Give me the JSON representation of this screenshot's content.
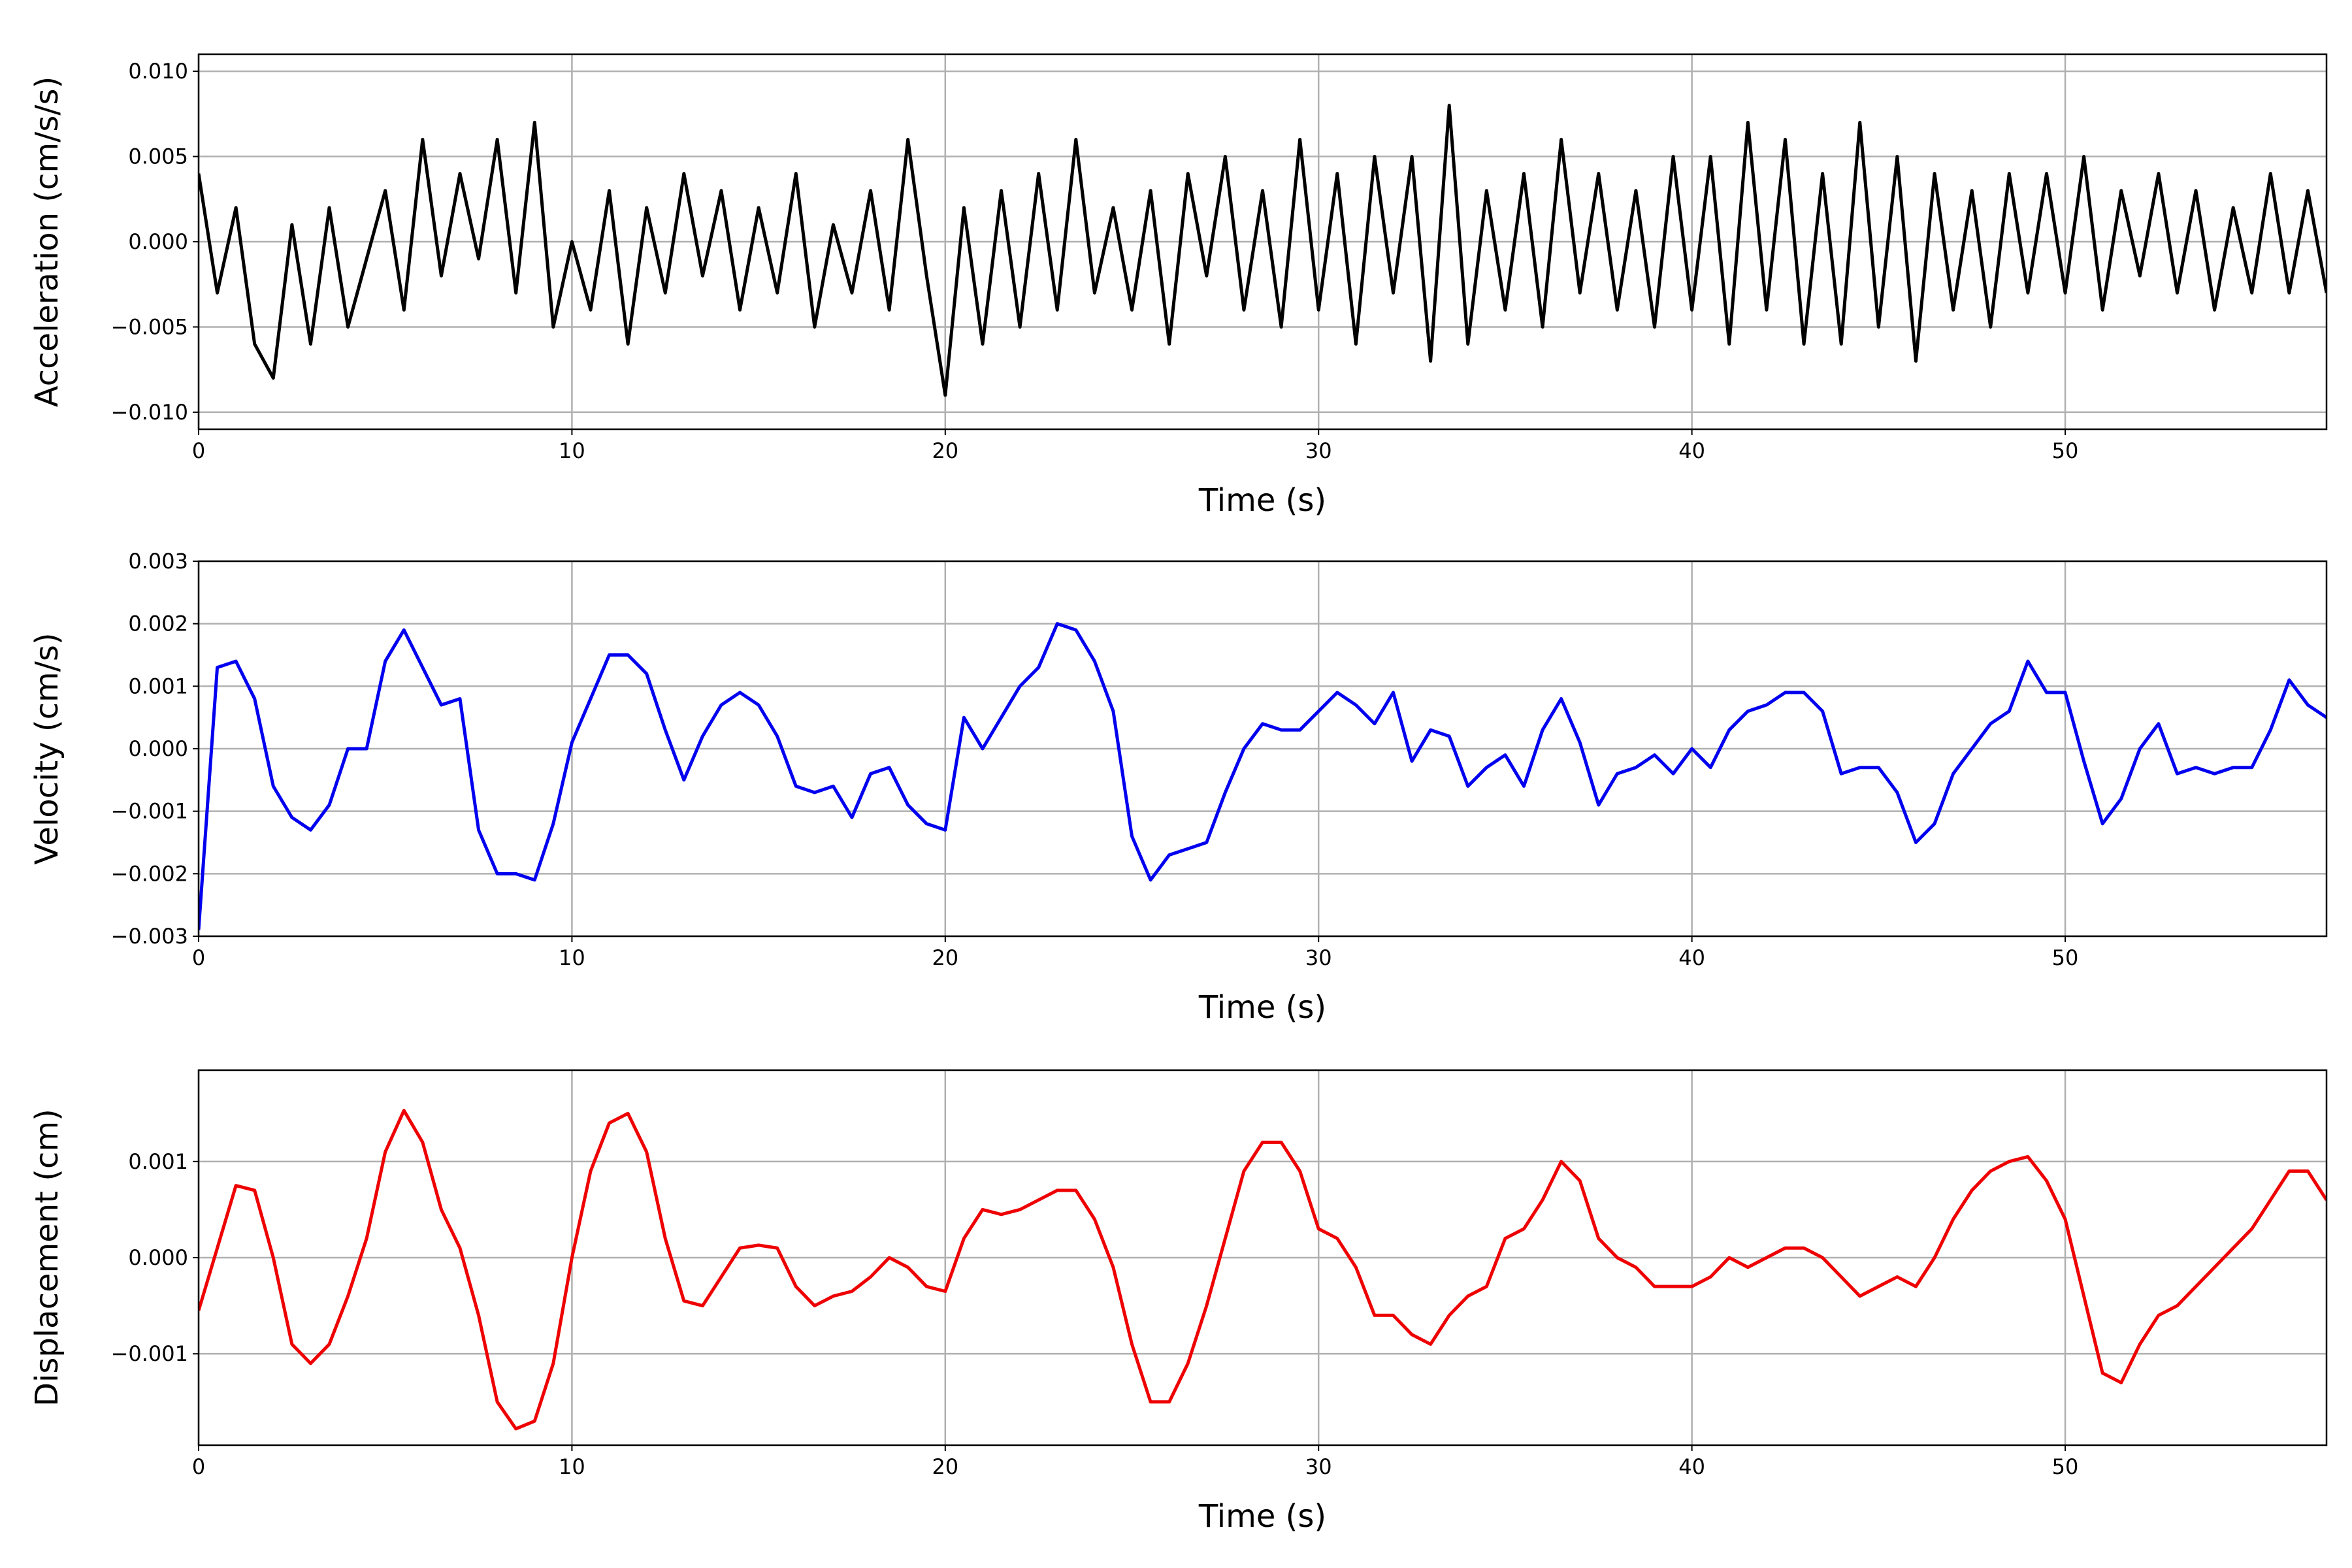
{
  "chart_data": [
    {
      "type": "line",
      "xlabel": "Time (s)",
      "ylabel": "Acceleration (cm/s/s)",
      "color": "#000000",
      "grid": true,
      "xlim": [
        0,
        57
      ],
      "xticks": [
        0,
        10,
        20,
        30,
        40,
        50
      ],
      "ylim": [
        -0.011,
        0.011
      ],
      "yticks": [
        {
          "value": -0.01,
          "label": "−0.010"
        },
        {
          "value": -0.005,
          "label": "−0.005"
        },
        {
          "value": 0,
          "label": "0.000"
        },
        {
          "value": 0.005,
          "label": "0.005"
        },
        {
          "value": 0.01,
          "label": "0.010"
        }
      ],
      "x": [
        0,
        0.5,
        1,
        1.5,
        2,
        2.5,
        3,
        3.5,
        4,
        4.5,
        5,
        5.5,
        6,
        6.5,
        7,
        7.5,
        8,
        8.5,
        9,
        9.5,
        10,
        10.5,
        11,
        11.5,
        12,
        12.5,
        13,
        13.5,
        14,
        14.5,
        15,
        15.5,
        16,
        16.5,
        17,
        17.5,
        18,
        18.5,
        19,
        19.5,
        20,
        20.5,
        21,
        21.5,
        22,
        22.5,
        23,
        23.5,
        24,
        24.5,
        25,
        25.5,
        26,
        26.5,
        27,
        27.5,
        28,
        28.5,
        29,
        29.5,
        30,
        30.5,
        31,
        31.5,
        32,
        32.5,
        33,
        33.5,
        34,
        34.5,
        35,
        35.5,
        36,
        36.5,
        37,
        37.5,
        38,
        38.5,
        39,
        39.5,
        40,
        40.5,
        41,
        41.5,
        42,
        42.5,
        43,
        43.5,
        44,
        44.5,
        45,
        45.5,
        46,
        46.5,
        47,
        47.5,
        48,
        48.5,
        49,
        49.5,
        50,
        50.5,
        51,
        51.5,
        52,
        52.5,
        53,
        53.5,
        54,
        54.5,
        55,
        55.5,
        56,
        56.5,
        57
      ],
      "values": [
        0.004,
        -0.003,
        0.002,
        -0.006,
        -0.008,
        0.001,
        -0.006,
        0.002,
        -0.005,
        -0.001,
        0.003,
        -0.004,
        0.006,
        -0.002,
        0.004,
        -0.001,
        0.006,
        -0.003,
        0.007,
        -0.005,
        0.0,
        -0.004,
        0.003,
        -0.006,
        0.002,
        -0.003,
        0.004,
        -0.002,
        0.003,
        -0.004,
        0.002,
        -0.003,
        0.004,
        -0.005,
        0.001,
        -0.003,
        0.003,
        -0.004,
        0.006,
        -0.002,
        -0.009,
        0.002,
        -0.006,
        0.003,
        -0.005,
        0.004,
        -0.004,
        0.006,
        -0.003,
        0.002,
        -0.004,
        0.003,
        -0.006,
        0.004,
        -0.002,
        0.005,
        -0.004,
        0.003,
        -0.005,
        0.006,
        -0.004,
        0.004,
        -0.006,
        0.005,
        -0.003,
        0.005,
        -0.007,
        0.008,
        -0.006,
        0.003,
        -0.004,
        0.004,
        -0.005,
        0.006,
        -0.003,
        0.004,
        -0.004,
        0.003,
        -0.005,
        0.005,
        -0.004,
        0.005,
        -0.006,
        0.007,
        -0.004,
        0.006,
        -0.006,
        0.004,
        -0.006,
        0.007,
        -0.005,
        0.005,
        -0.007,
        0.004,
        -0.004,
        0.003,
        -0.005,
        0.004,
        -0.003,
        0.004,
        -0.003,
        0.005,
        -0.004,
        0.003,
        -0.002,
        0.004,
        -0.003,
        0.003,
        -0.004,
        0.002,
        -0.003,
        0.004,
        -0.003,
        0.003,
        -0.003
      ]
    },
    {
      "type": "line",
      "xlabel": "Time (s)",
      "ylabel": "Velocity (cm/s)",
      "color": "#0000ee",
      "grid": true,
      "xlim": [
        0,
        57
      ],
      "xticks": [
        0,
        10,
        20,
        30,
        40,
        50
      ],
      "ylim": [
        -0.003,
        0.003
      ],
      "yticks": [
        {
          "value": -0.003,
          "label": "−0.003"
        },
        {
          "value": -0.002,
          "label": "−0.002"
        },
        {
          "value": -0.001,
          "label": "−0.001"
        },
        {
          "value": 0,
          "label": "0.000"
        },
        {
          "value": 0.001,
          "label": "0.001"
        },
        {
          "value": 0.002,
          "label": "0.002"
        },
        {
          "value": 0.003,
          "label": "0.003"
        }
      ],
      "x": [
        0,
        0.5,
        1,
        1.5,
        2,
        2.5,
        3,
        3.5,
        4,
        4.5,
        5,
        5.5,
        6,
        6.5,
        7,
        7.5,
        8,
        8.5,
        9,
        9.5,
        10,
        10.5,
        11,
        11.5,
        12,
        12.5,
        13,
        13.5,
        14,
        14.5,
        15,
        15.5,
        16,
        16.5,
        17,
        17.5,
        18,
        18.5,
        19,
        19.5,
        20,
        20.5,
        21,
        21.5,
        22,
        22.5,
        23,
        23.5,
        24,
        24.5,
        25,
        25.5,
        26,
        26.5,
        27,
        27.5,
        28,
        28.5,
        29,
        29.5,
        30,
        30.5,
        31,
        31.5,
        32,
        32.5,
        33,
        33.5,
        34,
        34.5,
        35,
        35.5,
        36,
        36.5,
        37,
        37.5,
        38,
        38.5,
        39,
        39.5,
        40,
        40.5,
        41,
        41.5,
        42,
        42.5,
        43,
        43.5,
        44,
        44.5,
        45,
        45.5,
        46,
        46.5,
        47,
        47.5,
        48,
        48.5,
        49,
        49.5,
        50,
        50.5,
        51,
        51.5,
        52,
        52.5,
        53,
        53.5,
        54,
        54.5,
        55,
        55.5,
        56,
        56.5,
        57
      ],
      "values": [
        -0.0029,
        0.0013,
        0.0014,
        0.0008,
        -0.0006,
        -0.0011,
        -0.0013,
        -0.0009,
        0.0,
        0.0,
        0.0014,
        0.0019,
        0.0013,
        0.0007,
        0.0008,
        -0.0013,
        -0.002,
        -0.002,
        -0.0021,
        -0.0012,
        0.0001,
        0.0008,
        0.0015,
        0.0015,
        0.0012,
        0.0003,
        -0.0005,
        0.0002,
        0.0007,
        0.0009,
        0.0007,
        0.0002,
        -0.0006,
        -0.0007,
        -0.0006,
        -0.0011,
        -0.0004,
        -0.0003,
        -0.0009,
        -0.0012,
        -0.0013,
        0.0005,
        0.0,
        0.0005,
        0.001,
        0.0013,
        0.002,
        0.0019,
        0.0014,
        0.0006,
        -0.0014,
        -0.0021,
        -0.0017,
        -0.0016,
        -0.0015,
        -0.0007,
        0.0,
        0.0004,
        0.0003,
        0.0003,
        0.0006,
        0.0009,
        0.0007,
        0.0004,
        0.0009,
        -0.0002,
        0.0003,
        0.0002,
        -0.0006,
        -0.0003,
        -0.0001,
        -0.0006,
        0.0003,
        0.0008,
        0.0001,
        -0.0009,
        -0.0004,
        -0.0003,
        -0.0001,
        -0.0004,
        0.0,
        -0.0003,
        0.0003,
        0.0006,
        0.0007,
        0.0009,
        0.0009,
        0.0006,
        -0.0004,
        -0.0003,
        -0.0003,
        -0.0007,
        -0.0015,
        -0.0012,
        -0.0004,
        0.0,
        0.0004,
        0.0006,
        0.0014,
        0.0009,
        0.0009,
        -0.0002,
        -0.0012,
        -0.0008,
        0.0,
        0.0004,
        -0.0004,
        -0.0003,
        -0.0004,
        -0.0003,
        -0.0003,
        0.0003,
        0.0011,
        0.0007,
        0.0005
      ]
    },
    {
      "type": "line",
      "xlabel": "Time (s)",
      "ylabel": "Displacement (cm)",
      "color": "#ee0000",
      "grid": true,
      "xlim": [
        0,
        57
      ],
      "xticks": [
        0,
        10,
        20,
        30,
        40,
        50
      ],
      "ylim": [
        -0.00195,
        0.00195
      ],
      "yticks": [
        {
          "value": -0.001,
          "label": "−0.001"
        },
        {
          "value": 0,
          "label": "0.000"
        },
        {
          "value": 0.001,
          "label": "0.001"
        }
      ],
      "x": [
        0,
        0.5,
        1,
        1.5,
        2,
        2.5,
        3,
        3.5,
        4,
        4.5,
        5,
        5.5,
        6,
        6.5,
        7,
        7.5,
        8,
        8.5,
        9,
        9.5,
        10,
        10.5,
        11,
        11.5,
        12,
        12.5,
        13,
        13.5,
        14,
        14.5,
        15,
        15.5,
        16,
        16.5,
        17,
        17.5,
        18,
        18.5,
        19,
        19.5,
        20,
        20.5,
        21,
        21.5,
        22,
        22.5,
        23,
        23.5,
        24,
        24.5,
        25,
        25.5,
        26,
        26.5,
        27,
        27.5,
        28,
        28.5,
        29,
        29.5,
        30,
        30.5,
        31,
        31.5,
        32,
        32.5,
        33,
        33.5,
        34,
        34.5,
        35,
        35.5,
        36,
        36.5,
        37,
        37.5,
        38,
        38.5,
        39,
        39.5,
        40,
        40.5,
        41,
        41.5,
        42,
        42.5,
        43,
        43.5,
        44,
        44.5,
        45,
        45.5,
        46,
        46.5,
        47,
        47.5,
        48,
        48.5,
        49,
        49.5,
        50,
        50.5,
        51,
        51.5,
        52,
        52.5,
        53,
        53.5,
        54,
        54.5,
        55,
        55.5,
        56,
        56.5,
        57
      ],
      "values": [
        -0.00055,
        0.0001,
        0.00075,
        0.0007,
        0.0,
        -0.0009,
        -0.0011,
        -0.0009,
        -0.0004,
        0.0002,
        0.0011,
        0.00153,
        0.0012,
        0.0005,
        0.0001,
        -0.0006,
        -0.0015,
        -0.00178,
        -0.0017,
        -0.0011,
        0.0,
        0.0009,
        0.0014,
        0.0015,
        0.0011,
        0.0002,
        -0.00045,
        -0.0005,
        -0.0002,
        0.0001,
        0.00013,
        0.0001,
        -0.0003,
        -0.0005,
        -0.0004,
        -0.00035,
        -0.0002,
        0.0,
        -0.0001,
        -0.0003,
        -0.00035,
        0.0002,
        0.0005,
        0.00045,
        0.0005,
        0.0006,
        0.0007,
        0.0007,
        0.0004,
        -0.0001,
        -0.0009,
        -0.0015,
        -0.0015,
        -0.0011,
        -0.0005,
        0.0002,
        0.0009,
        0.0012,
        0.0012,
        0.0009,
        0.0003,
        0.0002,
        -0.0001,
        -0.0006,
        -0.0006,
        -0.0008,
        -0.0009,
        -0.0006,
        -0.0004,
        -0.0003,
        0.0002,
        0.0003,
        0.0006,
        0.001,
        0.0008,
        0.0002,
        0.0,
        -0.0001,
        -0.0003,
        -0.0003,
        -0.0003,
        -0.0002,
        0.0,
        -0.0001,
        0.0,
        0.0001,
        0.0001,
        0.0,
        -0.0002,
        -0.0004,
        -0.0003,
        -0.0002,
        -0.0003,
        0.0,
        0.0004,
        0.0007,
        0.0009,
        0.001,
        0.00105,
        0.0008,
        0.0004,
        -0.0004,
        -0.0012,
        -0.0013,
        -0.0009,
        -0.0006,
        -0.0005,
        -0.0003,
        -0.0001,
        0.0001,
        0.0003,
        0.0006,
        0.0009,
        0.0009,
        0.0006
      ]
    }
  ]
}
